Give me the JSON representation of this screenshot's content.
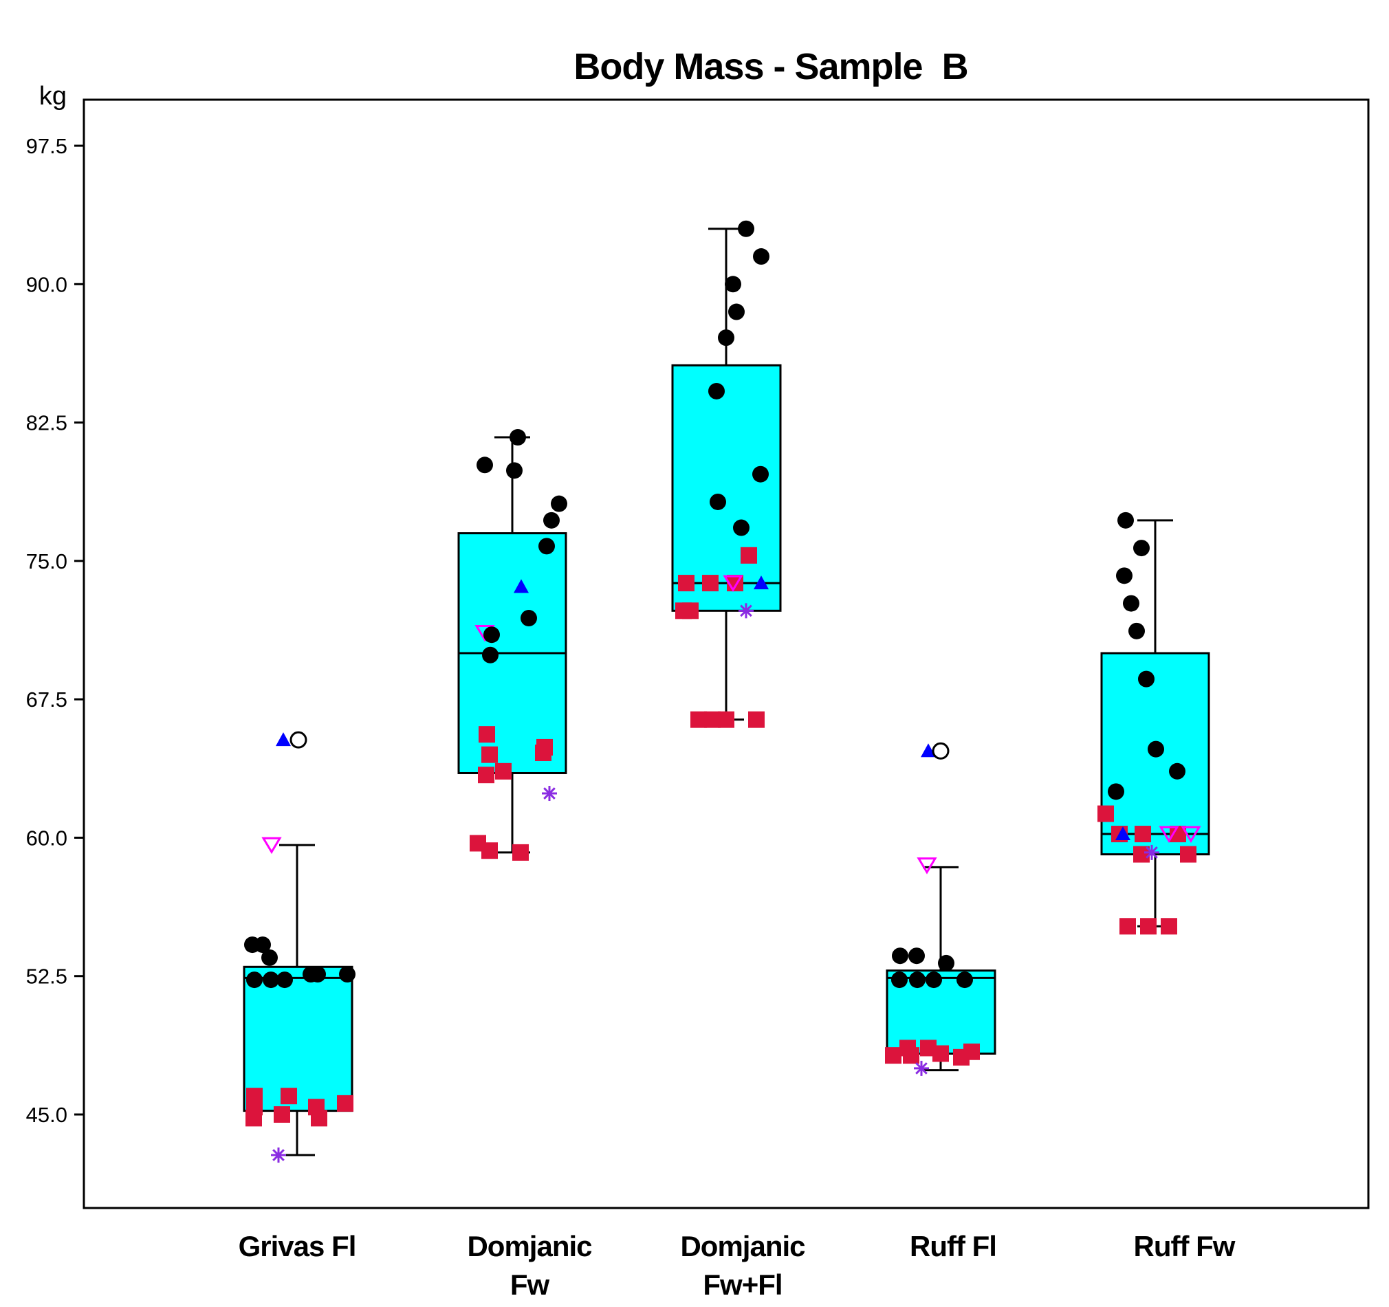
{
  "chart_data": {
    "type": "box",
    "title": "Body Mass - Sample  B",
    "ylabel": "kg",
    "ylim": [
      39.5,
      99.5
    ],
    "yticks": [
      "45.0",
      "52.5",
      "60.0",
      "67.5",
      "75.0",
      "82.5",
      "90.0",
      "97.5"
    ],
    "grid": false,
    "colors": {
      "box_fill": "#00ffff",
      "circle": "#000000",
      "square": "#dc143c",
      "triangle_up": "#0000ff",
      "triangle_down": "#ff00ff",
      "asterisk": "#8a2be2"
    },
    "categories": [
      {
        "label_lines": [
          "Grivas Fl"
        ],
        "box": {
          "whisker_low": 42.8,
          "q1": 45.2,
          "median": 52.4,
          "q3": 53.0,
          "whisker_high": 59.6
        },
        "points": [
          {
            "shape": "circle",
            "values": [
              54.2,
              54.2,
              53.5,
              52.3,
              52.3,
              52.3,
              52.6,
              52.6,
              52.6
            ]
          },
          {
            "shape": "square",
            "values": [
              46.0,
              45.4,
              44.8,
              45.0,
              46.0,
              45.4,
              44.8,
              45.6
            ]
          },
          {
            "shape": "triangle_up",
            "values": [
              65.3
            ]
          },
          {
            "shape": "open_circle",
            "values": [
              65.3
            ]
          },
          {
            "shape": "triangle_down",
            "values": [
              59.6
            ]
          },
          {
            "shape": "asterisk",
            "values": [
              42.8
            ]
          }
        ]
      },
      {
        "label_lines": [
          "Domjanic",
          "Fw"
        ],
        "box": {
          "whisker_low": 59.2,
          "q1": 63.5,
          "median": 70.0,
          "q3": 76.5,
          "whisker_high": 81.7
        },
        "points": [
          {
            "shape": "circle",
            "values": [
              81.7,
              80.2,
              79.9,
              78.1,
              77.2,
              75.8,
              71.9,
              71.0,
              69.9
            ]
          },
          {
            "shape": "square",
            "values": [
              65.6,
              64.5,
              63.4,
              63.6,
              64.9,
              64.6,
              59.7,
              59.3,
              59.2
            ]
          },
          {
            "shape": "triangle_up",
            "values": [
              73.6
            ]
          },
          {
            "shape": "triangle_down",
            "values": [
              71.1
            ]
          },
          {
            "shape": "asterisk",
            "values": [
              62.4
            ]
          }
        ]
      },
      {
        "label_lines": [
          "Domjanic",
          "Fw+Fl"
        ],
        "box": {
          "whisker_low": 66.4,
          "q1": 72.3,
          "median": 73.8,
          "q3": 85.6,
          "whisker_high": 93.0
        },
        "points": [
          {
            "shape": "circle",
            "values": [
              93.0,
              91.5,
              90.0,
              88.5,
              87.1,
              84.2,
              79.7,
              78.2,
              76.8
            ]
          },
          {
            "shape": "square",
            "values": [
              75.3,
              73.8,
              73.8,
              73.8,
              72.3,
              72.3,
              66.4,
              66.4,
              66.4,
              66.4
            ]
          },
          {
            "shape": "triangle_up",
            "values": [
              73.8
            ]
          },
          {
            "shape": "triangle_down",
            "values": [
              73.8
            ]
          },
          {
            "shape": "asterisk",
            "values": [
              72.3
            ]
          }
        ]
      },
      {
        "label_lines": [
          "Ruff  Fl"
        ],
        "box": {
          "whisker_low": 47.4,
          "q1": 48.3,
          "median": 52.4,
          "q3": 52.8,
          "whisker_high": 58.4
        },
        "points": [
          {
            "shape": "circle",
            "values": [
              53.6,
              53.6,
              52.3,
              52.3,
              52.3,
              53.2,
              52.3
            ]
          },
          {
            "shape": "square",
            "values": [
              48.2,
              48.6,
              48.2,
              48.6,
              48.3,
              48.1,
              48.4
            ]
          },
          {
            "shape": "triangle_up",
            "values": [
              64.7
            ]
          },
          {
            "shape": "open_circle",
            "values": [
              64.7
            ]
          },
          {
            "shape": "triangle_down",
            "values": [
              58.5
            ]
          },
          {
            "shape": "asterisk",
            "values": [
              47.5
            ]
          }
        ]
      },
      {
        "label_lines": [
          "Ruff Fw"
        ],
        "box": {
          "whisker_low": 55.2,
          "q1": 59.1,
          "median": 60.2,
          "q3": 70.0,
          "whisker_high": 77.2
        },
        "points": [
          {
            "shape": "circle",
            "values": [
              77.2,
              75.7,
              74.2,
              72.7,
              71.2,
              68.6,
              64.8,
              63.6,
              62.5
            ]
          },
          {
            "shape": "square",
            "values": [
              61.3,
              60.2,
              60.2,
              60.2,
              59.1,
              59.1,
              55.2,
              55.2,
              55.2
            ]
          },
          {
            "shape": "triangle_up",
            "values": [
              60.2
            ]
          },
          {
            "shape": "triangle_down",
            "values": [
              60.2,
              60.2
            ]
          },
          {
            "shape": "asterisk",
            "values": [
              59.2
            ]
          }
        ]
      }
    ]
  }
}
